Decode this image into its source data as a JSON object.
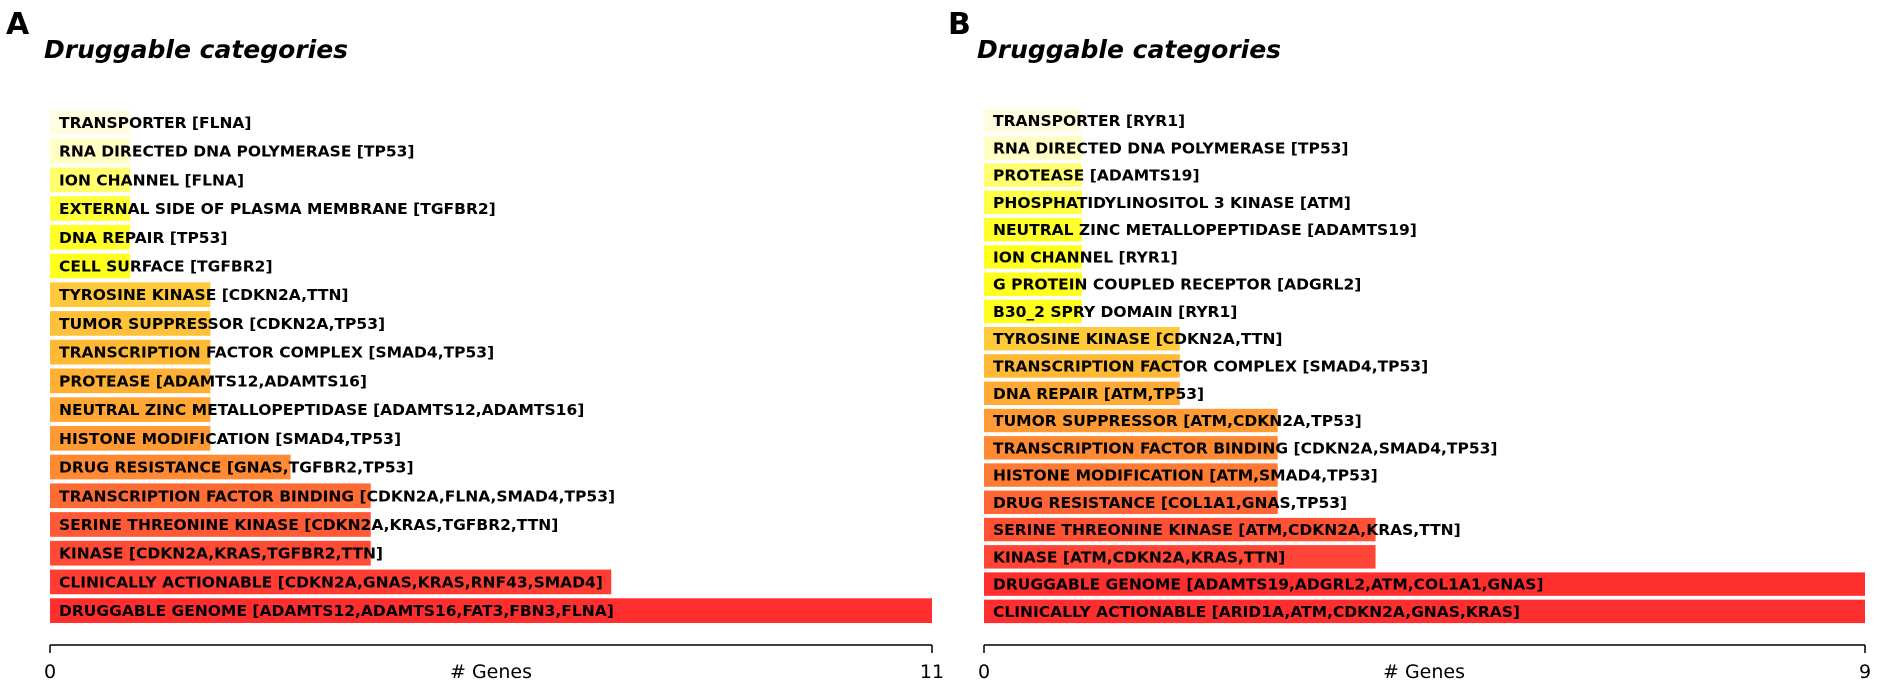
{
  "panels": [
    {
      "letter": "A"
    },
    {
      "letter": "B"
    }
  ],
  "chart_data": [
    {
      "type": "bar",
      "orientation": "horizontal",
      "title": "Druggable categories",
      "xlabel": "# Genes",
      "xlim": [
        0,
        11
      ],
      "x_ticks": [
        "0",
        "11"
      ],
      "categories": [
        "TRANSPORTER [FLNA]",
        "RNA DIRECTED DNA POLYMERASE [TP53]",
        "ION CHANNEL [FLNA]",
        "EXTERNAL SIDE OF PLASMA MEMBRANE [TGFBR2]",
        "DNA REPAIR [TP53]",
        "CELL SURFACE [TGFBR2]",
        "TYROSINE KINASE [CDKN2A,TTN]",
        "TUMOR SUPPRESSOR [CDKN2A,TP53]",
        "TRANSCRIPTION FACTOR COMPLEX [SMAD4,TP53]",
        "PROTEASE [ADAMTS12,ADAMTS16]",
        "NEUTRAL ZINC METALLOPEPTIDASE [ADAMTS12,ADAMTS16]",
        "HISTONE MODIFICATION [SMAD4,TP53]",
        "DRUG RESISTANCE [GNAS,TGFBR2,TP53]",
        "TRANSCRIPTION FACTOR BINDING [CDKN2A,FLNA,SMAD4,TP53]",
        "SERINE THREONINE KINASE [CDKN2A,KRAS,TGFBR2,TTN]",
        "KINASE [CDKN2A,KRAS,TGFBR2,TTN]",
        "CLINICALLY ACTIONABLE [CDKN2A,GNAS,KRAS,RNF43,SMAD4]",
        "DRUGGABLE GENOME [ADAMTS12,ADAMTS16,FAT3,FBN3,FLNA]"
      ],
      "values": [
        1,
        1,
        1,
        1,
        1,
        1,
        2,
        2,
        2,
        2,
        2,
        2,
        3,
        4,
        4,
        4,
        7,
        11
      ],
      "colors": [
        "#fffde0",
        "#ffffc4",
        "#ffff6e",
        "#ffff38",
        "#ffff25",
        "#ffff1e",
        "#ffc93a",
        "#ffc13a",
        "#ffb935",
        "#ffb035",
        "#ffa635",
        "#ff9a35",
        "#ff8a33",
        "#ff6b35",
        "#ff5a35",
        "#ff4a35",
        "#ff3d35",
        "#ff2e2e"
      ]
    },
    {
      "type": "bar",
      "orientation": "horizontal",
      "title": "Druggable categories",
      "xlabel": "# Genes",
      "xlim": [
        0,
        9
      ],
      "x_ticks": [
        "0",
        "9"
      ],
      "categories": [
        "TRANSPORTER [RYR1]",
        "RNA DIRECTED DNA POLYMERASE [TP53]",
        "PROTEASE [ADAMTS19]",
        "PHOSPHATIDYLINOSITOL 3 KINASE [ATM]",
        "NEUTRAL ZINC METALLOPEPTIDASE [ADAMTS19]",
        "ION CHANNEL [RYR1]",
        "G PROTEIN COUPLED RECEPTOR [ADGRL2]",
        "B30_2 SPRY DOMAIN [RYR1]",
        "TYROSINE KINASE [CDKN2A,TTN]",
        "TRANSCRIPTION FACTOR COMPLEX [SMAD4,TP53]",
        "DNA REPAIR [ATM,TP53]",
        "TUMOR SUPPRESSOR [ATM,CDKN2A,TP53]",
        "TRANSCRIPTION FACTOR BINDING [CDKN2A,SMAD4,TP53]",
        "HISTONE MODIFICATION [ATM,SMAD4,TP53]",
        "DRUG RESISTANCE [COL1A1,GNAS,TP53]",
        "SERINE THREONINE KINASE [ATM,CDKN2A,KRAS,TTN]",
        "KINASE [ATM,CDKN2A,KRAS,TTN]",
        "DRUGGABLE GENOME [ADAMTS19,ADGRL2,ATM,COL1A1,GNAS]",
        "CLINICALLY ACTIONABLE [ARID1A,ATM,CDKN2A,GNAS,KRAS]"
      ],
      "values": [
        1,
        1,
        1,
        1,
        1,
        1,
        1,
        1,
        2,
        2,
        2,
        3,
        3,
        3,
        3,
        4,
        4,
        9,
        9
      ],
      "colors": [
        "#fffde0",
        "#ffffc4",
        "#ffff70",
        "#ffff45",
        "#ffff2a",
        "#ffff1e",
        "#ffff1e",
        "#ffff1e",
        "#ffc93a",
        "#ffb935",
        "#ffaa35",
        "#ff9a35",
        "#ff8a33",
        "#ff7a33",
        "#ff6535",
        "#ff5235",
        "#ff4535",
        "#ff2e2e",
        "#ff2e2e"
      ]
    }
  ]
}
